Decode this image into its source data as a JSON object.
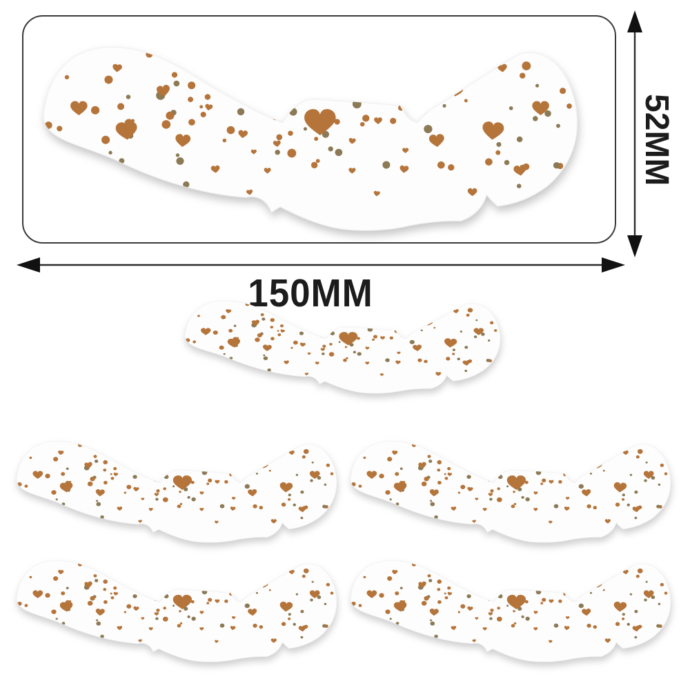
{
  "page": {
    "background": "#ffffff"
  },
  "dimension_annotations": {
    "width_label": "150MM",
    "height_label": "52MM",
    "line_color": "#2b2b2b",
    "arrowhead_color": "#111111",
    "text_color": "#1c1c1c"
  },
  "outline_box": {
    "border_color": "#3a3a3a"
  },
  "sticker": {
    "fill_color": "#fdfdfd",
    "edge_color": "#f2f2f2",
    "heart_color": "#b5743a",
    "dot_color_copper": "#b5743a",
    "dot_color_olive": "#8b7a55",
    "shadow_color": "rgba(140,140,140,0.45)",
    "total_count": 6,
    "variants": {
      "large_in_box": 1,
      "medium": 1,
      "grid": 4
    }
  }
}
